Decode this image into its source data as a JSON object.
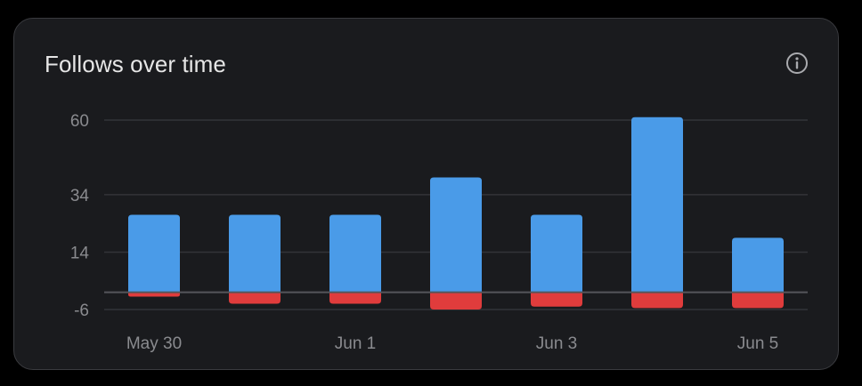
{
  "card": {
    "title": "Follows over time"
  },
  "icons": {
    "info": "info-icon"
  },
  "colors": {
    "background": "#1a1b1e",
    "gridline": "#333438",
    "zero_line": "#55565b",
    "tick_text": "#8a8b8f",
    "follows": "#4a9be8",
    "unfollows": "#e03c3c"
  },
  "chart_data": {
    "type": "bar",
    "stacked": true,
    "x": [
      "May 30",
      "May 31",
      "Jun 1",
      "Jun 2",
      "Jun 3",
      "Jun 4",
      "Jun 5"
    ],
    "x_tick_labels": [
      "May 30",
      "Jun 1",
      "Jun 3",
      "Jun 5"
    ],
    "y_ticks": [
      -6,
      14,
      34,
      60
    ],
    "ylim": [
      -6,
      60
    ],
    "grid": true,
    "series": [
      {
        "values": [
          27,
          27,
          27,
          40,
          27,
          61,
          19
        ]
      },
      {
        "values": [
          -1.5,
          -4,
          -4,
          -6,
          -5,
          -5.5,
          -5.5
        ]
      }
    ]
  }
}
